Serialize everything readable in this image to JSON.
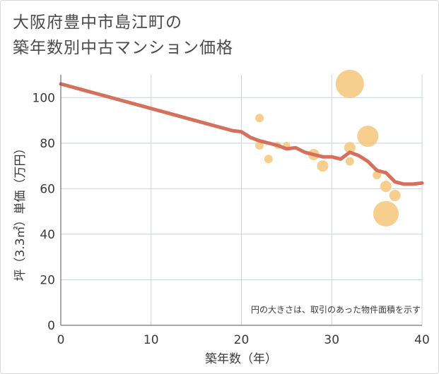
{
  "title_lines": [
    "大阪府豊中市島江町の",
    "築年数別中古マンション価格"
  ],
  "chart_data": {
    "type": "scatter",
    "title": "大阪府豊中市島江町の築年数別中古マンション価格",
    "xlabel": "築年数（年）",
    "ylabel": "坪（3.3㎡）単価（万円）",
    "xlim": [
      0,
      40
    ],
    "ylim": [
      0,
      110
    ],
    "xticks": [
      0,
      10,
      20,
      30,
      40
    ],
    "yticks": [
      0,
      20,
      40,
      60,
      80,
      100
    ],
    "grid": true,
    "note": "円の大きさは、取引のあった物件面積を示す",
    "colors": {
      "bubble": "#f5c57a",
      "trend": "#d4705c",
      "grid": "#c8d3dd"
    },
    "bubbles": [
      {
        "x": 22,
        "y": 91,
        "r": 6
      },
      {
        "x": 22,
        "y": 79,
        "r": 6
      },
      {
        "x": 23,
        "y": 73,
        "r": 6
      },
      {
        "x": 24,
        "y": 79,
        "r": 5
      },
      {
        "x": 25,
        "y": 79,
        "r": 5
      },
      {
        "x": 28,
        "y": 75,
        "r": 8
      },
      {
        "x": 29,
        "y": 70,
        "r": 8
      },
      {
        "x": 32,
        "y": 106,
        "r": 20
      },
      {
        "x": 32,
        "y": 78,
        "r": 8
      },
      {
        "x": 32,
        "y": 72,
        "r": 6
      },
      {
        "x": 34,
        "y": 83,
        "r": 15
      },
      {
        "x": 35,
        "y": 66,
        "r": 6
      },
      {
        "x": 36,
        "y": 61,
        "r": 8
      },
      {
        "x": 36,
        "y": 49,
        "r": 18
      },
      {
        "x": 37,
        "y": 57,
        "r": 8
      }
    ],
    "trend": {
      "x": [
        0,
        19,
        20,
        21,
        22,
        23,
        24,
        25,
        26,
        27,
        28,
        29,
        30,
        31,
        32,
        33,
        34,
        35,
        36,
        37,
        38,
        39,
        40
      ],
      "y": [
        106,
        85.5,
        85,
        82.5,
        81,
        80,
        79,
        77.5,
        78,
        76,
        75,
        74,
        74,
        73,
        76,
        74.5,
        72,
        68,
        67,
        63,
        62,
        62,
        62.5
      ]
    }
  }
}
